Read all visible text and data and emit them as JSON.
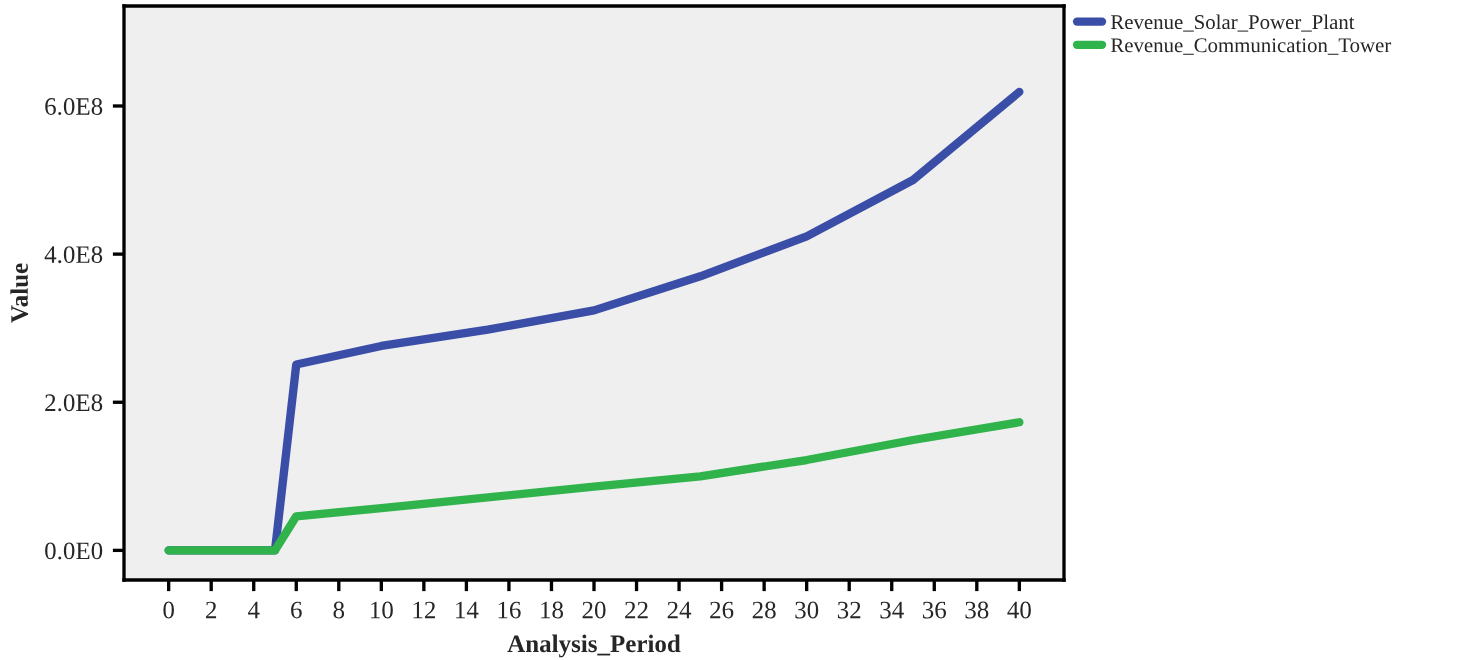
{
  "chart_data": {
    "type": "line",
    "xlabel": "Analysis_Period",
    "ylabel": "Value",
    "xlim": [
      -2.1,
      42.1
    ],
    "xticks": [
      0,
      2,
      4,
      6,
      8,
      10,
      12,
      14,
      16,
      18,
      20,
      22,
      24,
      26,
      28,
      30,
      32,
      34,
      36,
      38,
      40
    ],
    "ylim": [
      -40000000.0,
      735000000.0
    ],
    "yticks": [
      {
        "value": 0,
        "label": "0.0E0"
      },
      {
        "value": 200000000,
        "label": "2.0E8"
      },
      {
        "value": 400000000,
        "label": "4.0E8"
      },
      {
        "value": 600000000,
        "label": "6.0E8"
      }
    ],
    "grid": false,
    "legend": "top right",
    "marker": "none",
    "line_style": "solid",
    "series": [
      {
        "name": "Revenue_Solar_Power_Plant",
        "color": "#3a4ea8",
        "x": [
          0,
          5,
          6,
          10,
          15,
          20,
          25,
          30,
          35,
          40
        ],
        "values": [
          0,
          0,
          251000000,
          276000000,
          298000000,
          324000000,
          370000000,
          424000000,
          500000000,
          619000000
        ]
      },
      {
        "name": "Revenue_Communication_Tower",
        "color": "#2fb34a",
        "x": [
          0,
          5,
          6,
          10,
          20,
          25,
          30,
          35,
          40
        ],
        "values": [
          0,
          0,
          46000000,
          57000000,
          86000000,
          100000000,
          122000000,
          149000000,
          173000000
        ]
      }
    ]
  }
}
